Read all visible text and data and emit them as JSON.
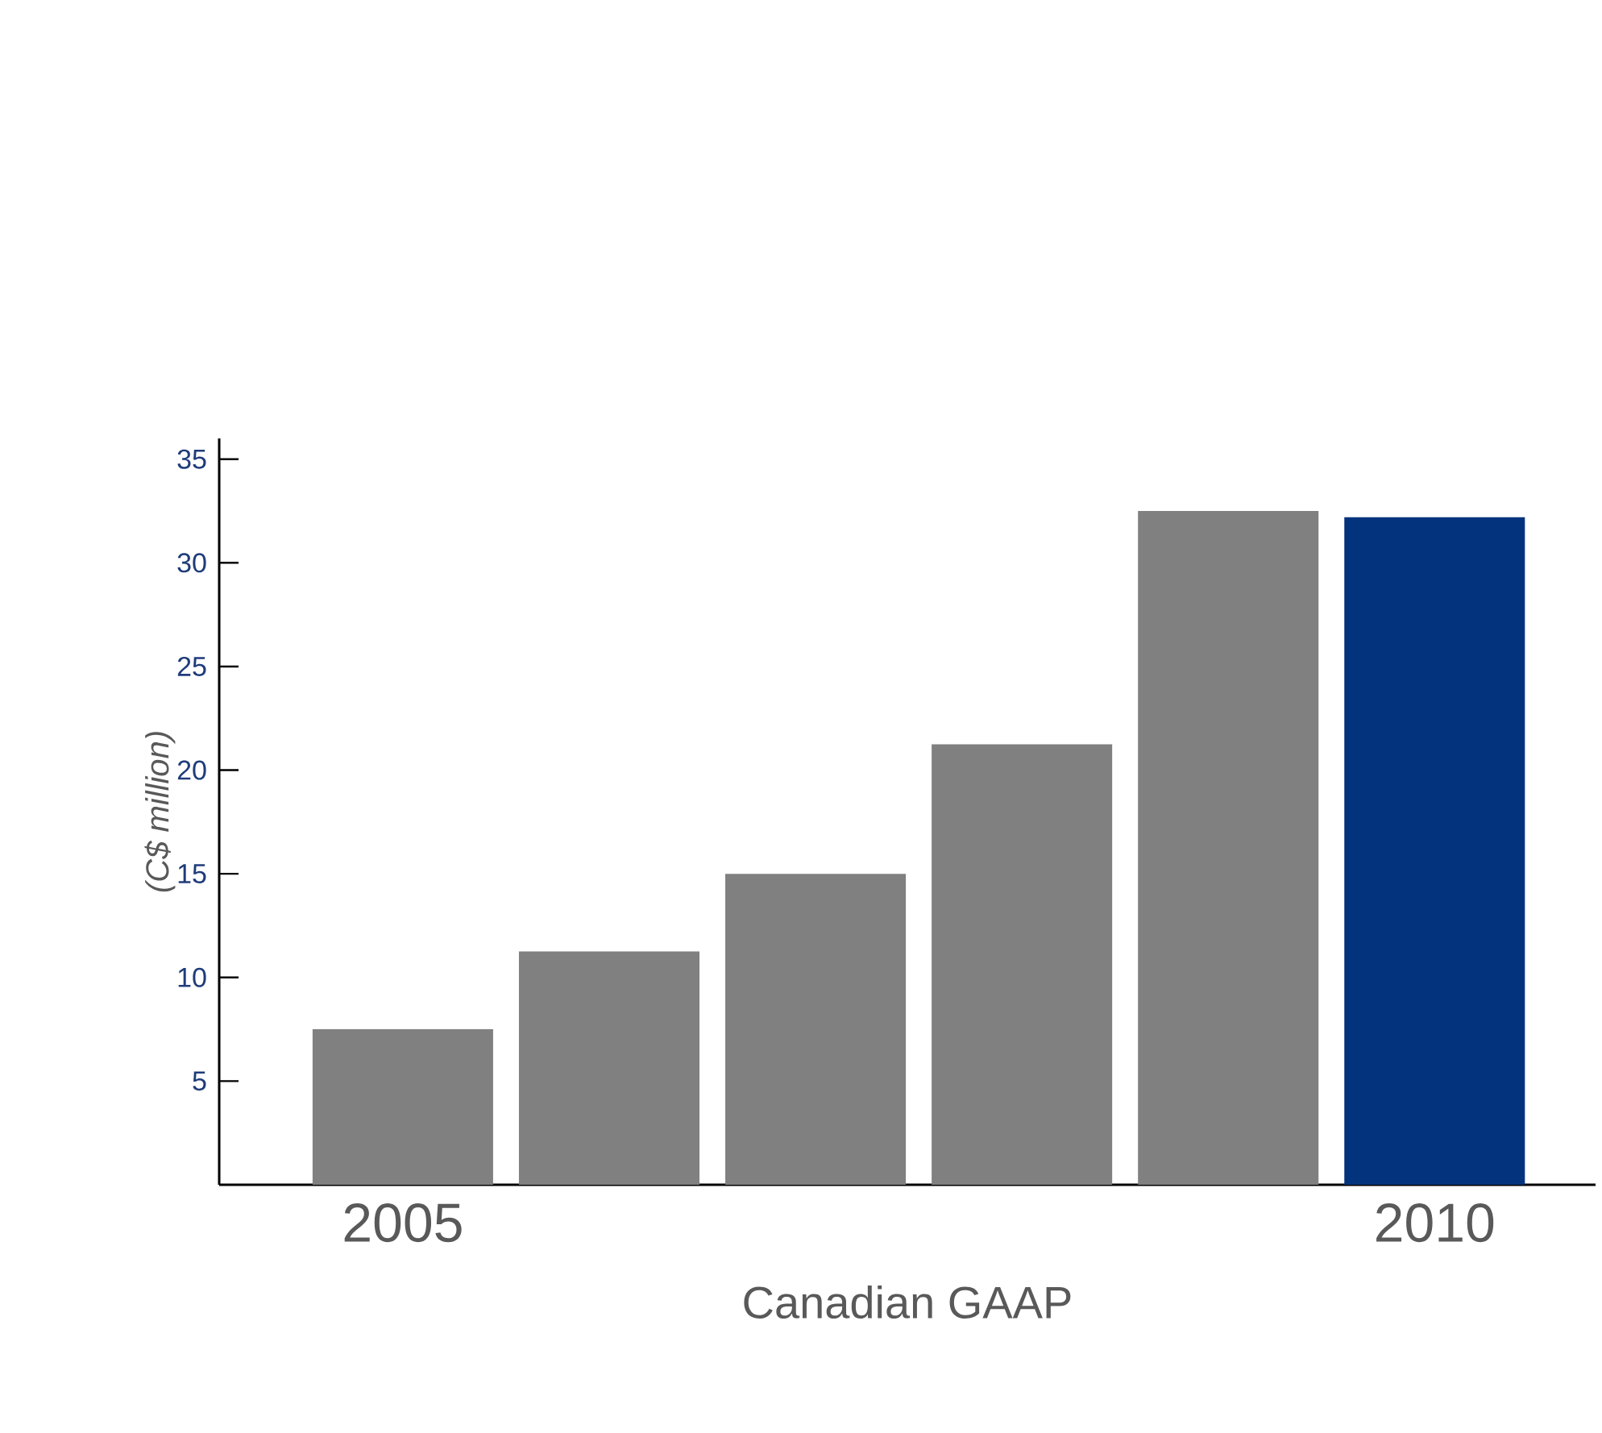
{
  "chart_data": {
    "type": "bar",
    "xlabel": "Canadian GAAP",
    "ylabel": "(C$ million)",
    "categories": [
      "2005",
      null,
      null,
      null,
      null,
      "2010"
    ],
    "values": [
      7.5,
      11.25,
      15,
      21.25,
      32.5,
      32.2
    ],
    "colors": [
      "#808080",
      "#808080",
      "#808080",
      "#808080",
      "#808080",
      "#03337c"
    ],
    "ylim": [
      0,
      36
    ],
    "yticks": [
      5,
      10,
      15,
      20,
      25,
      30,
      35
    ]
  }
}
